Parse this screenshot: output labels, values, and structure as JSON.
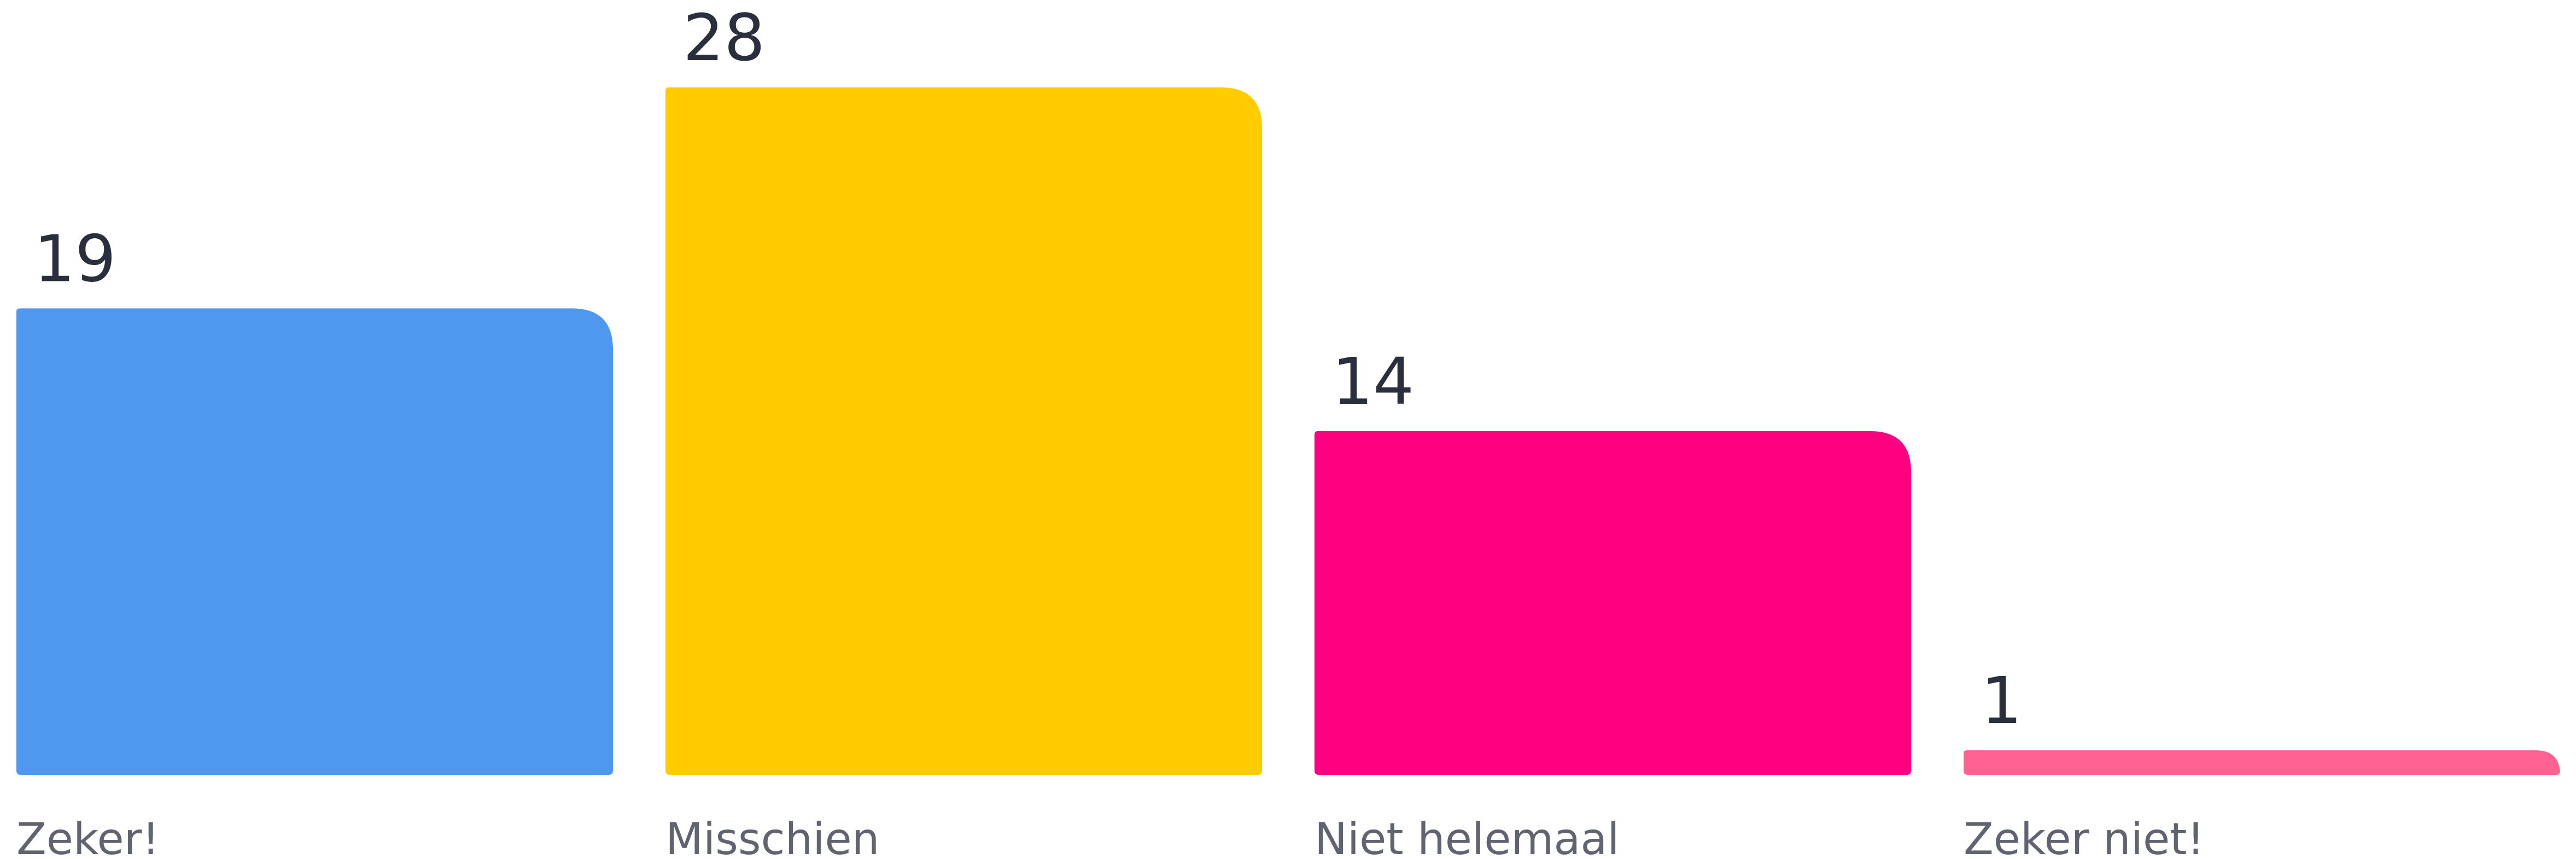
{
  "chart_data": {
    "type": "bar",
    "categories": [
      "Zeker!",
      "Misschien",
      "Niet helemaal",
      "Zeker niet!"
    ],
    "values": [
      19,
      28,
      14,
      1
    ],
    "colors": [
      "#4f98ef",
      "#ffcc00",
      "#ff0080",
      "#ff6191"
    ]
  }
}
